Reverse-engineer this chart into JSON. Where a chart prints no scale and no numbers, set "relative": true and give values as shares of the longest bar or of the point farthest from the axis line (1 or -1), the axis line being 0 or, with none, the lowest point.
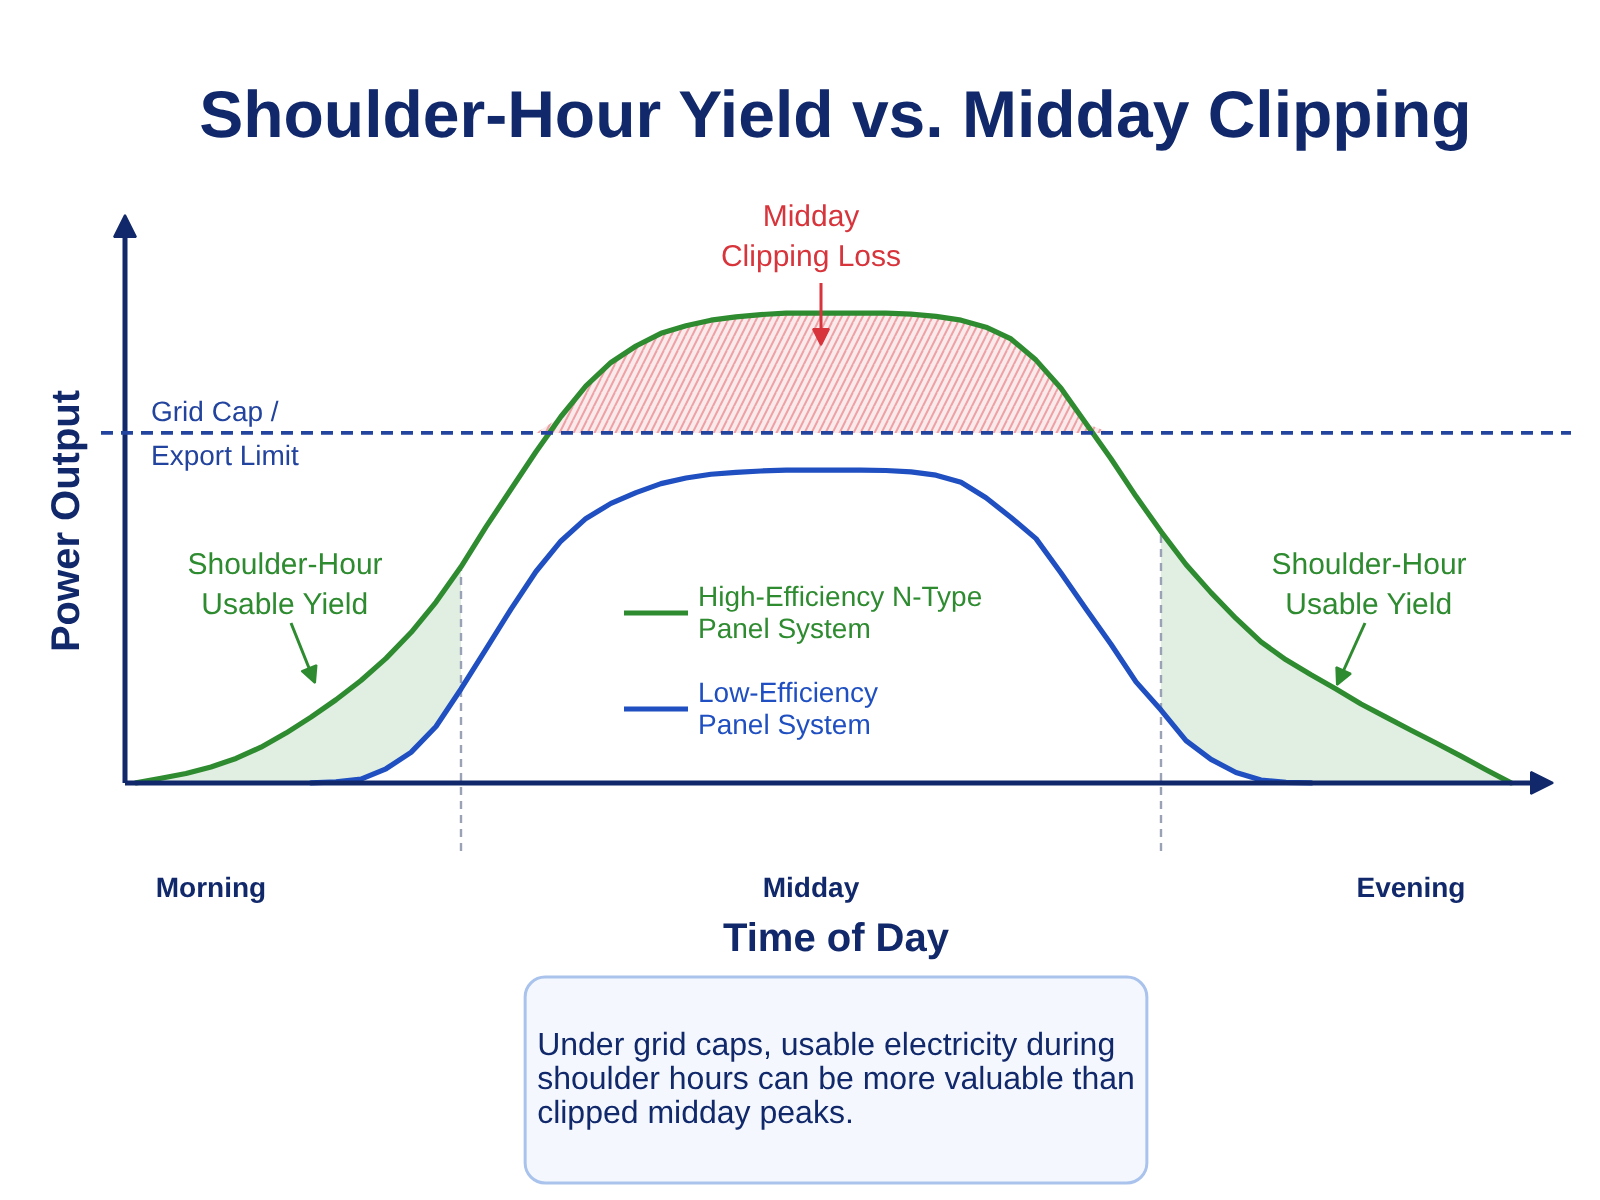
{
  "chart_data": {
    "type": "line",
    "title": "Shoulder-Hour Yield vs. Midday Clipping",
    "xlabel": "Time of Day",
    "ylabel": "Power Output",
    "relative": true,
    "categories": [
      null,
      null,
      null,
      "Morning",
      null,
      null,
      null,
      null,
      null,
      null,
      null,
      null,
      null,
      null,
      null,
      null,
      null,
      null,
      null,
      null,
      null,
      null,
      null,
      null,
      null,
      null,
      null,
      "Midday",
      null,
      null,
      null,
      null,
      null,
      null,
      null,
      null,
      null,
      null,
      null,
      null,
      null,
      null,
      null,
      null,
      null,
      null,
      null,
      null,
      null,
      null,
      null,
      "Evening",
      null,
      null,
      null,
      null
    ],
    "series": [
      {
        "name": "High-Efficiency N-Type Panel System",
        "color": "#2e8b30",
        "values": [
          0,
          0.01,
          0.02,
          0.034,
          0.052,
          0.076,
          0.106,
          0.14,
          0.177,
          0.218,
          0.265,
          0.32,
          0.385,
          0.46,
          0.545,
          0.625,
          0.705,
          0.78,
          0.845,
          0.895,
          0.93,
          0.957,
          0.973,
          0.985,
          0.992,
          0.997,
          1,
          1,
          1,
          1,
          1,
          0.998,
          0.993,
          0.985,
          0.97,
          0.945,
          0.9,
          0.84,
          0.765,
          0.69,
          0.61,
          0.535,
          0.465,
          0.405,
          0.35,
          0.3,
          0.262,
          0.23,
          0.2,
          0.168,
          0.14,
          0.112,
          0.085,
          0.057,
          0.028,
          0
        ],
        "lower": [
          0,
          0,
          0,
          0,
          0,
          0,
          0,
          0,
          0.002,
          0.008,
          0.03,
          0.065,
          0.12,
          0.2,
          null,
          null,
          null,
          null,
          null,
          null,
          null,
          null,
          null,
          null,
          null,
          null,
          null,
          null,
          null,
          null,
          null,
          null,
          null,
          null,
          null,
          null,
          null,
          null,
          null,
          null,
          null,
          0.155,
          0.09,
          0.05,
          0.022,
          0.006,
          0.001,
          0,
          0,
          0,
          0,
          0,
          0,
          0,
          0,
          0
        ],
        "upper": [
          0,
          0.01,
          0.02,
          0.034,
          0.052,
          0.076,
          0.106,
          0.14,
          0.177,
          0.218,
          0.265,
          0.32,
          0.385,
          0.46,
          null,
          null,
          null,
          null,
          null,
          null,
          null,
          null,
          null,
          null,
          null,
          null,
          null,
          null,
          null,
          null,
          null,
          null,
          null,
          null,
          null,
          null,
          null,
          null,
          null,
          null,
          null,
          0.535,
          0.465,
          0.405,
          0.35,
          0.3,
          0.262,
          0.23,
          0.2,
          0.168,
          0.14,
          0.112,
          0.085,
          0.057,
          0.028,
          0
        ]
      },
      {
        "name": "Low-Efficiency Panel System",
        "color": "#1f4fc0",
        "values": [
          null,
          null,
          null,
          null,
          null,
          null,
          null,
          0,
          0.002,
          0.008,
          0.03,
          0.065,
          0.12,
          0.2,
          0.285,
          0.37,
          0.45,
          0.515,
          0.563,
          0.595,
          0.618,
          0.637,
          0.649,
          0.657,
          0.661,
          0.664,
          0.666,
          0.666,
          0.666,
          0.666,
          0.665,
          0.662,
          0.655,
          0.64,
          0.607,
          0.565,
          0.52,
          0.447,
          0.37,
          0.295,
          0.215,
          0.155,
          0.09,
          0.05,
          0.022,
          0.006,
          0.001,
          0,
          null,
          null,
          null,
          null,
          null,
          null,
          null,
          null
        ]
      },
      {
        "type": "area",
        "color": "#d7343b",
        "values": [
          null,
          null,
          null,
          null,
          null,
          null,
          null,
          null,
          null,
          null,
          null,
          null,
          null,
          null,
          null,
          null,
          0.745,
          0.78,
          0.845,
          0.895,
          0.93,
          0.957,
          0.973,
          0.985,
          0.992,
          0.997,
          1,
          1,
          1,
          1,
          1,
          0.998,
          0.993,
          0.985,
          0.97,
          0.945,
          0.9,
          0.84,
          0.765,
          0.745,
          null,
          null,
          null,
          null,
          null,
          null,
          null,
          null,
          null,
          null,
          null,
          null,
          null,
          null,
          null,
          null
        ]
      }
    ],
    "ref_lines": [
      {
        "axis": "y",
        "value": 0.745,
        "label": "Grid Cap / Export Limit",
        "color": "#23449e",
        "line_style": "dashed"
      }
    ],
    "annotations": [
      "Midday Clipping Loss",
      "Shoulder-Hour Usable Yield",
      "Shoulder-Hour Usable Yield",
      "Under grid caps, usable electricity during shoulder hours can be more valuable than clipped midday peaks."
    ],
    "legend": "center"
  }
}
